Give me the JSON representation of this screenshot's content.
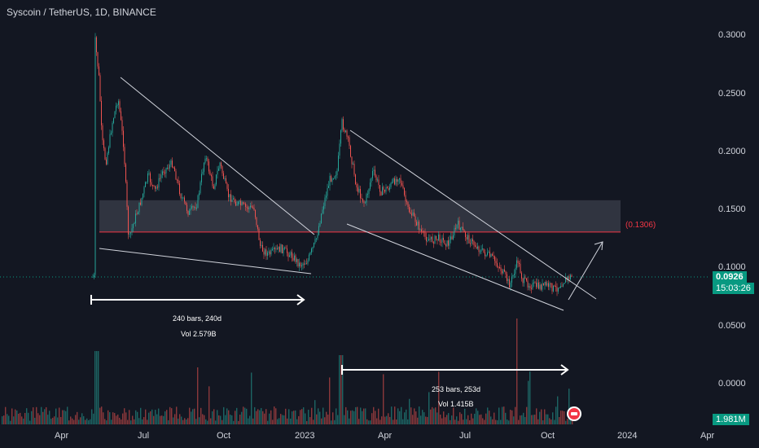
{
  "header": {
    "symbol_title": "Syscoin / TetherUS, 1D, BINANCE"
  },
  "price_axis": {
    "labels": [
      "0.3000",
      "0.2500",
      "0.2000",
      "0.1500",
      "0.1000",
      "0.0500",
      "0.0000"
    ],
    "label_values": [
      0.3,
      0.25,
      0.2,
      0.15,
      0.1,
      0.05,
      0.0
    ],
    "last_price": "0.0926",
    "countdown": "15:03:26",
    "volume_tag": "1.981M"
  },
  "time_axis": {
    "labels": [
      "Apr",
      "Jul",
      "Oct",
      "2023",
      "Apr",
      "Jul",
      "Oct",
      "2024",
      "Apr"
    ]
  },
  "annotations": {
    "resistance_label": "(0.1306)",
    "resistance_price": 0.1306,
    "zone_top_price": 0.158,
    "zone_bottom_price": 0.1306,
    "measure1_bars": "240 bars, 240d",
    "measure1_vol": "Vol 2.579B",
    "measure2_bars": "253 bars, 253d",
    "measure2_vol": "Vol 1.415B"
  },
  "colors": {
    "background": "#131722",
    "up": "#26a69a",
    "down": "#ef5350",
    "zone": "#363a45",
    "resistance": "#f23645",
    "trendline": "#d1d4dc",
    "last_price_tag": "#089981",
    "axis_text": "#d1d4dc"
  },
  "chart_data": {
    "type": "candlestick",
    "symbol": "Syscoin / TetherUS",
    "interval": "1D",
    "exchange": "BINANCE",
    "ylim": [
      0,
      0.32
    ],
    "y_ticks": [
      0.3,
      0.25,
      0.2,
      0.15,
      0.1,
      0.05,
      0.0
    ],
    "x_ticks": [
      "Apr",
      "Jul",
      "Oct",
      "2023",
      "Apr",
      "Jul",
      "Oct",
      "2024",
      "Apr"
    ],
    "last_price": 0.0926,
    "resistance_level": 0.1306,
    "approx_close_path": [
      [
        "2022-05",
        0.29
      ],
      [
        "2022-05",
        0.2
      ],
      [
        "2022-06",
        0.14
      ],
      [
        "2022-06",
        0.245
      ],
      [
        "2022-07",
        0.13
      ],
      [
        "2022-08",
        0.19
      ],
      [
        "2022-09",
        0.14
      ],
      [
        "2022-09",
        0.195
      ],
      [
        "2022-10",
        0.15
      ],
      [
        "2022-11",
        0.105
      ],
      [
        "2022-12",
        0.112
      ],
      [
        "2022-12",
        0.098
      ],
      [
        "2023-01",
        0.155
      ],
      [
        "2023-02",
        0.225
      ],
      [
        "2023-02",
        0.15
      ],
      [
        "2023-03",
        0.18
      ],
      [
        "2023-04",
        0.15
      ],
      [
        "2023-05",
        0.125
      ],
      [
        "2023-06",
        0.125
      ],
      [
        "2023-07",
        0.118
      ],
      [
        "2023-08",
        0.108
      ],
      [
        "2023-08",
        0.082
      ],
      [
        "2023-09",
        0.088
      ],
      [
        "2023-10",
        0.084
      ],
      [
        "2023-11",
        0.0926
      ]
    ],
    "grid": false,
    "legend": "none"
  }
}
